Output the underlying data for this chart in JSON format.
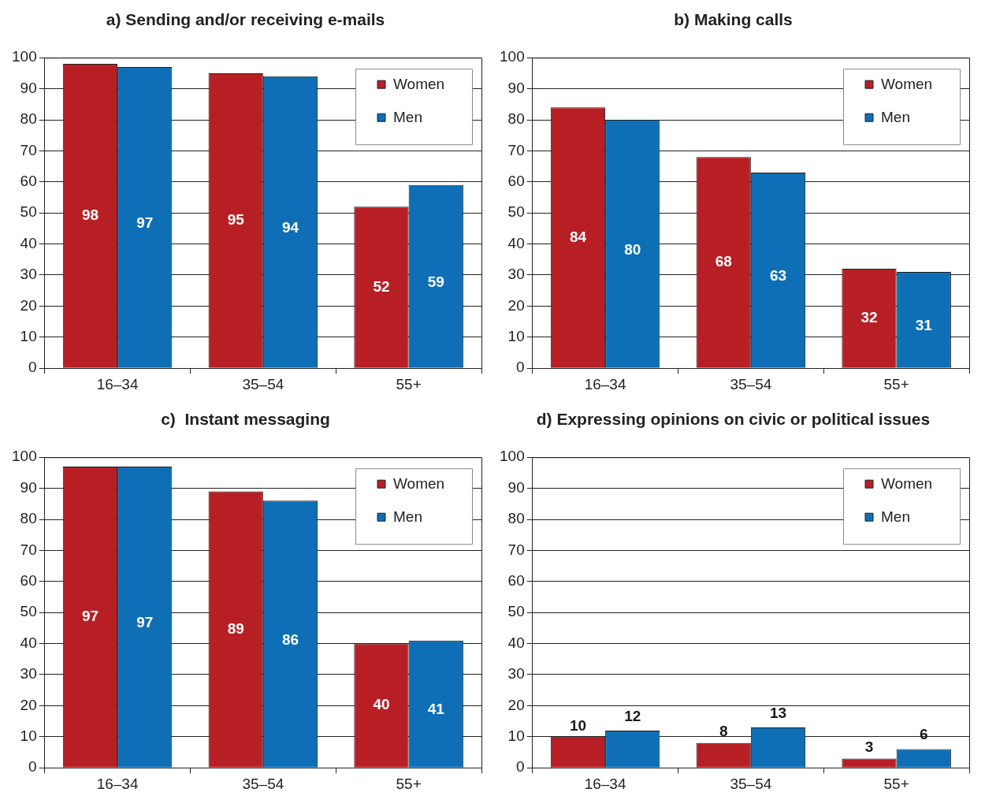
{
  "chart_data": [
    {
      "type": "bar",
      "title": "a) Sending and/or receiving e-mails",
      "categories": [
        "16–34",
        "35–54",
        "55+"
      ],
      "series": [
        {
          "name": "Women",
          "color": "#b81f25",
          "values": [
            98,
            95,
            52
          ]
        },
        {
          "name": "Men",
          "color": "#0e6fb6",
          "values": [
            97,
            94,
            59
          ]
        }
      ],
      "ylim": [
        0,
        100
      ],
      "yticks": [
        0,
        10,
        20,
        30,
        40,
        50,
        60,
        70,
        80,
        90,
        100
      ],
      "grid": "y",
      "legend": "top right",
      "data_labels": true
    },
    {
      "type": "bar",
      "title": "b) Making calls",
      "categories": [
        "16–34",
        "35–54",
        "55+"
      ],
      "series": [
        {
          "name": "Women",
          "color": "#b81f25",
          "values": [
            84,
            68,
            32
          ]
        },
        {
          "name": "Men",
          "color": "#0e6fb6",
          "values": [
            80,
            63,
            31
          ]
        }
      ],
      "ylim": [
        0,
        100
      ],
      "yticks": [
        0,
        10,
        20,
        30,
        40,
        50,
        60,
        70,
        80,
        90,
        100
      ],
      "grid": "y",
      "legend": "top right",
      "data_labels": true
    },
    {
      "type": "bar",
      "title": "c)  Instant messaging",
      "categories": [
        "16–34",
        "35–54",
        "55+"
      ],
      "series": [
        {
          "name": "Women",
          "color": "#b81f25",
          "values": [
            97,
            89,
            40
          ]
        },
        {
          "name": "Men",
          "color": "#0e6fb6",
          "values": [
            97,
            86,
            41
          ]
        }
      ],
      "ylim": [
        0,
        100
      ],
      "yticks": [
        0,
        10,
        20,
        30,
        40,
        50,
        60,
        70,
        80,
        90,
        100
      ],
      "grid": "y",
      "legend": "top right",
      "data_labels": true
    },
    {
      "type": "bar",
      "title": "d) Expressing opinions on civic or political issues",
      "categories": [
        "16–34",
        "35–54",
        "55+"
      ],
      "series": [
        {
          "name": "Women",
          "color": "#b81f25",
          "values": [
            10,
            8,
            3
          ]
        },
        {
          "name": "Men",
          "color": "#0e6fb6",
          "values": [
            12,
            13,
            6
          ]
        }
      ],
      "ylim": [
        0,
        100
      ],
      "yticks": [
        0,
        10,
        20,
        30,
        40,
        50,
        60,
        70,
        80,
        90,
        100
      ],
      "grid": "y",
      "legend": "top right",
      "data_labels": true
    }
  ]
}
